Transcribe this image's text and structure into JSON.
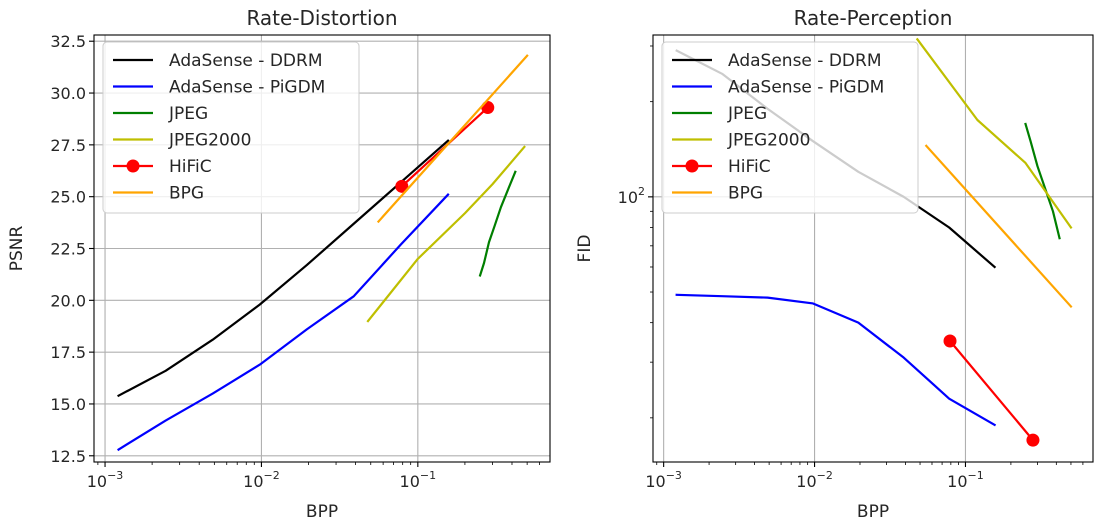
{
  "chart_data": [
    {
      "type": "line",
      "title": "Rate-Distortion",
      "xlabel": "BPP",
      "ylabel": "PSNR",
      "xscale": "log",
      "yscale": "linear",
      "xlim": [
        0.00085,
        0.7
      ],
      "ylim": [
        12.2,
        32.8
      ],
      "xticks": [
        {
          "value": 0.001,
          "base": "10",
          "exp": "−3"
        },
        {
          "value": 0.01,
          "base": "10",
          "exp": "−2"
        },
        {
          "value": 0.1,
          "base": "10",
          "exp": "−1"
        }
      ],
      "yticks": [
        {
          "value": 12.5,
          "label": "12.5"
        },
        {
          "value": 15.0,
          "label": "15.0"
        },
        {
          "value": 17.5,
          "label": "17.5"
        },
        {
          "value": 20.0,
          "label": "20.0"
        },
        {
          "value": 22.5,
          "label": "22.5"
        },
        {
          "value": 25.0,
          "label": "25.0"
        },
        {
          "value": 27.5,
          "label": "27.5"
        },
        {
          "value": 30.0,
          "label": "30.0"
        },
        {
          "value": 32.5,
          "label": "32.5"
        }
      ],
      "grid": true,
      "legend_position": "top-left",
      "series": [
        {
          "name": "AdaSense - DDRM",
          "color": "#000000",
          "marker": false,
          "x": [
            0.00122,
            0.00244,
            0.00488,
            0.00977,
            0.0195,
            0.039,
            0.078,
            0.156
          ],
          "y": [
            15.4,
            16.6,
            18.1,
            19.8,
            21.7,
            23.7,
            25.7,
            27.7
          ]
        },
        {
          "name": "AdaSense - PiGDM",
          "color": "#0000ff",
          "marker": false,
          "x": [
            0.00122,
            0.00244,
            0.00488,
            0.00977,
            0.0195,
            0.039,
            0.078,
            0.156
          ],
          "y": [
            12.8,
            14.2,
            15.5,
            16.9,
            18.6,
            20.2,
            22.7,
            25.1
          ]
        },
        {
          "name": "JPEG",
          "color": "#007f00",
          "marker": false,
          "x": [
            0.25,
            0.265,
            0.285,
            0.31,
            0.34,
            0.38,
            0.42
          ],
          "y": [
            21.2,
            21.8,
            22.8,
            23.6,
            24.5,
            25.4,
            26.2
          ]
        },
        {
          "name": "JPEG2000",
          "color": "#bfbf00",
          "marker": false,
          "x": [
            0.048,
            0.1,
            0.2,
            0.3,
            0.48
          ],
          "y": [
            19.0,
            22.0,
            24.2,
            25.6,
            27.4
          ]
        },
        {
          "name": "HiFiC",
          "color": "#ff0000",
          "marker": true,
          "x": [
            0.079,
            0.28
          ],
          "y": [
            25.5,
            29.3
          ]
        },
        {
          "name": "BPG",
          "color": "#ffa500",
          "marker": false,
          "x": [
            0.056,
            0.5
          ],
          "y": [
            23.8,
            31.8
          ]
        }
      ]
    },
    {
      "type": "line",
      "title": "Rate-Perception",
      "xlabel": "BPP",
      "ylabel": "FID",
      "xscale": "log",
      "yscale": "log",
      "xlim": [
        0.00085,
        0.7
      ],
      "ylim": [
        14.5,
        325
      ],
      "xticks": [
        {
          "value": 0.001,
          "base": "10",
          "exp": "−3"
        },
        {
          "value": 0.01,
          "base": "10",
          "exp": "−2"
        },
        {
          "value": 0.1,
          "base": "10",
          "exp": "−1"
        }
      ],
      "yticks": [
        {
          "value": 100,
          "base": "10",
          "exp": "2"
        }
      ],
      "grid": true,
      "legend_position": "top-left",
      "series": [
        {
          "name": "AdaSense - DDRM",
          "color": "#000000",
          "marker": false,
          "x": [
            0.00122,
            0.00244,
            0.00488,
            0.00977,
            0.0195,
            0.039,
            0.078,
            0.156
          ],
          "y": [
            290,
            245,
            190,
            150,
            120,
            100,
            80,
            60
          ]
        },
        {
          "name": "AdaSense - PiGDM",
          "color": "#0000ff",
          "marker": false,
          "x": [
            0.00122,
            0.00244,
            0.00488,
            0.00977,
            0.0195,
            0.039,
            0.078,
            0.156
          ],
          "y": [
            49,
            48.5,
            48,
            46,
            40,
            31,
            23,
            19
          ]
        },
        {
          "name": "JPEG",
          "color": "#007f00",
          "marker": false,
          "x": [
            0.25,
            0.27,
            0.3,
            0.34,
            0.38,
            0.42
          ],
          "y": [
            170,
            150,
            125,
            105,
            90,
            74
          ]
        },
        {
          "name": "JPEG2000",
          "color": "#bfbf00",
          "marker": false,
          "x": [
            0.048,
            0.12,
            0.25,
            0.5
          ],
          "y": [
            315,
            175,
            128,
            80
          ]
        },
        {
          "name": "HiFiC",
          "color": "#ff0000",
          "marker": true,
          "x": [
            0.079,
            0.28
          ],
          "y": [
            35,
            17
          ]
        },
        {
          "name": "BPG",
          "color": "#ffa500",
          "marker": false,
          "x": [
            0.055,
            0.5
          ],
          "y": [
            145,
            45
          ]
        }
      ]
    }
  ]
}
